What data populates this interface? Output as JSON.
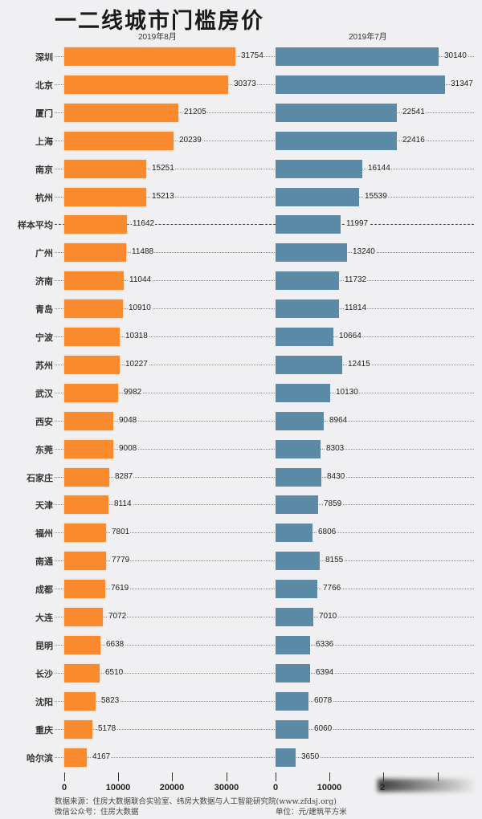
{
  "header": {
    "title": "一二线城市门槛房价",
    "left_panel_title": "2019年8月",
    "right_panel_title": "2019年7月"
  },
  "colors": {
    "aug": "#fa8a2e",
    "jul": "#5a8aa6",
    "avg_line": "#7a2a1a",
    "background": "#f0eff1"
  },
  "footer": {
    "source": "数据来源：住房大数据联合实验室、纬房大数据与人工智能研究院(www.zfdsj.org)",
    "wechat": "微信公众号：住房大数据",
    "unit": "单位：元/建筑平方米"
  },
  "chart_data": {
    "type": "bar",
    "orientation": "horizontal",
    "title": "一二线城市门槛房价",
    "unit": "元/建筑平方米",
    "categories": [
      "深圳",
      "北京",
      "厦门",
      "上海",
      "南京",
      "杭州",
      "样本平均",
      "广州",
      "济南",
      "青岛",
      "宁波",
      "苏州",
      "武汉",
      "西安",
      "东莞",
      "石家庄",
      "天津",
      "福州",
      "南通",
      "成都",
      "大连",
      "昆明",
      "长沙",
      "沈阳",
      "重庆",
      "哈尔滨"
    ],
    "series": [
      {
        "name": "2019年8月",
        "values": [
          31754,
          30373,
          21205,
          20239,
          15251,
          15213,
          11642,
          11488,
          11044,
          10910,
          10318,
          10227,
          9982,
          9048,
          9008,
          8287,
          8114,
          7801,
          7779,
          7619,
          7072,
          6638,
          6510,
          5823,
          5178,
          4167
        ]
      },
      {
        "name": "2019年7月",
        "values": [
          30140,
          31347,
          22541,
          22416,
          16144,
          15539,
          11997,
          13240,
          11732,
          11814,
          10664,
          12415,
          10130,
          8964,
          8303,
          8430,
          7859,
          6806,
          8155,
          7766,
          7010,
          6336,
          6394,
          6078,
          6060,
          3650
        ]
      }
    ],
    "average_row": "样本平均",
    "x_ticks_left": [
      "0",
      "10000",
      "20000",
      "30000"
    ],
    "x_ticks_right": [
      "0",
      "10000",
      "2",
      "",
      ""
    ],
    "xlim": [
      0,
      35000
    ],
    "grid": "dotted row guides"
  }
}
